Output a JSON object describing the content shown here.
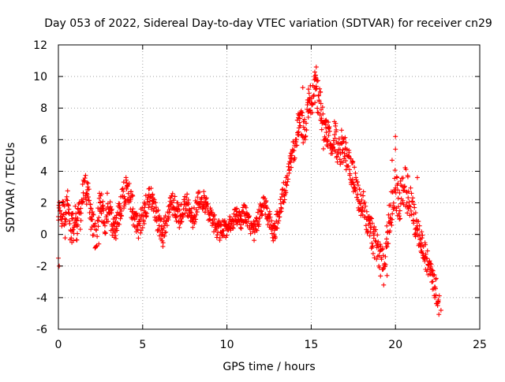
{
  "chart_data": {
    "type": "scatter",
    "title": "Day 053 of 2022, Sidereal Day-to-day VTEC variation (SDTVAR) for receiver cn29",
    "xlabel": "GPS time / hours",
    "ylabel": "SDTVAR / TECUs",
    "xlim": [
      0,
      25
    ],
    "ylim": [
      -6,
      12
    ],
    "xticks": [
      0,
      5,
      10,
      15,
      20,
      25
    ],
    "xtick_labels": [
      "0",
      "5",
      "10",
      "15",
      "20",
      "25"
    ],
    "yticks": [
      -6,
      -4,
      -2,
      0,
      2,
      4,
      6,
      8,
      10,
      12
    ],
    "ytick_labels": [
      "-6",
      "-4",
      "-2",
      "0",
      "2",
      "4",
      "6",
      "8",
      "10",
      "12"
    ],
    "grid": true,
    "marker": "+",
    "color": "#ff0000",
    "series": [
      {
        "name": "SDTVAR",
        "trace": [
          [
            0.0,
            1.5
          ],
          [
            0.1,
            2.0
          ],
          [
            0.2,
            1.2
          ],
          [
            0.3,
            1.8
          ],
          [
            0.4,
            0.5
          ],
          [
            0.5,
            2.8
          ],
          [
            0.6,
            1.5
          ],
          [
            0.7,
            -0.5
          ],
          [
            0.8,
            1.0
          ],
          [
            0.9,
            0.2
          ],
          [
            1.0,
            1.5
          ],
          [
            1.1,
            0.0
          ],
          [
            1.2,
            2.0
          ],
          [
            1.3,
            1.0
          ],
          [
            1.4,
            2.5
          ],
          [
            1.5,
            2.8
          ],
          [
            1.6,
            3.0
          ],
          [
            1.7,
            2.6
          ],
          [
            1.8,
            2.4
          ],
          [
            1.9,
            1.2
          ],
          [
            2.0,
            0.8
          ],
          [
            2.1,
            0.5
          ],
          [
            2.2,
            -0.3
          ],
          [
            2.3,
            0.0
          ],
          [
            2.4,
            1.8
          ],
          [
            2.5,
            2.0
          ],
          [
            2.6,
            1.5
          ],
          [
            2.7,
            1.0
          ],
          [
            2.8,
            0.6
          ],
          [
            2.9,
            1.8
          ],
          [
            3.0,
            1.5
          ],
          [
            3.2,
            0.8
          ],
          [
            3.4,
            0.2
          ],
          [
            3.6,
            1.5
          ],
          [
            3.8,
            2.2
          ],
          [
            4.0,
            2.8
          ],
          [
            4.2,
            2.5
          ],
          [
            4.4,
            1.6
          ],
          [
            4.6,
            1.0
          ],
          [
            4.8,
            0.5
          ],
          [
            5.0,
            1.2
          ],
          [
            5.2,
            1.8
          ],
          [
            5.4,
            2.6
          ],
          [
            5.6,
            2.2
          ],
          [
            5.8,
            1.2
          ],
          [
            6.0,
            0.5
          ],
          [
            6.2,
            0.0
          ],
          [
            6.4,
            0.8
          ],
          [
            6.6,
            1.6
          ],
          [
            6.8,
            2.0
          ],
          [
            7.0,
            1.5
          ],
          [
            7.2,
            1.0
          ],
          [
            7.4,
            1.6
          ],
          [
            7.6,
            2.0
          ],
          [
            7.8,
            1.2
          ],
          [
            8.0,
            1.0
          ],
          [
            8.2,
            1.8
          ],
          [
            8.4,
            2.3
          ],
          [
            8.6,
            2.2
          ],
          [
            8.8,
            1.8
          ],
          [
            9.0,
            1.2
          ],
          [
            9.2,
            0.8
          ],
          [
            9.4,
            0.4
          ],
          [
            9.6,
            0.2
          ],
          [
            9.8,
            0.5
          ],
          [
            10.0,
            0.3
          ],
          [
            10.2,
            0.6
          ],
          [
            10.4,
            1.0
          ],
          [
            10.6,
            1.2
          ],
          [
            10.8,
            0.8
          ],
          [
            11.0,
            1.4
          ],
          [
            11.2,
            1.0
          ],
          [
            11.4,
            0.6
          ],
          [
            11.6,
            0.2
          ],
          [
            11.8,
            0.8
          ],
          [
            12.0,
            1.5
          ],
          [
            12.2,
            2.2
          ],
          [
            12.4,
            1.2
          ],
          [
            12.6,
            0.8
          ],
          [
            12.8,
            0.0
          ],
          [
            13.0,
            1.0
          ],
          [
            13.2,
            2.0
          ],
          [
            13.4,
            2.8
          ],
          [
            13.6,
            3.5
          ],
          [
            13.8,
            4.5
          ],
          [
            14.0,
            5.5
          ],
          [
            14.2,
            6.8
          ],
          [
            14.4,
            7.0
          ],
          [
            14.6,
            6.5
          ],
          [
            14.8,
            8.2
          ],
          [
            15.0,
            8.5
          ],
          [
            15.2,
            9.5
          ],
          [
            15.4,
            8.8
          ],
          [
            15.6,
            7.5
          ],
          [
            15.8,
            6.0
          ],
          [
            16.0,
            6.8
          ],
          [
            16.2,
            6.0
          ],
          [
            16.4,
            6.4
          ],
          [
            16.6,
            5.0
          ],
          [
            16.8,
            5.5
          ],
          [
            17.0,
            5.2
          ],
          [
            17.2,
            4.5
          ],
          [
            17.4,
            4.0
          ],
          [
            17.6,
            3.2
          ],
          [
            17.8,
            2.5
          ],
          [
            18.0,
            2.0
          ],
          [
            18.2,
            1.5
          ],
          [
            18.4,
            0.5
          ],
          [
            18.6,
            0.0
          ],
          [
            18.8,
            -0.6
          ],
          [
            19.0,
            -1.2
          ],
          [
            19.2,
            -2.0
          ],
          [
            19.4,
            -1.0
          ],
          [
            19.6,
            0.5
          ],
          [
            19.8,
            2.0
          ],
          [
            20.0,
            3.0
          ],
          [
            20.2,
            2.0
          ],
          [
            20.4,
            2.5
          ],
          [
            20.6,
            3.0
          ],
          [
            20.8,
            2.2
          ],
          [
            21.0,
            1.5
          ],
          [
            21.2,
            0.5
          ],
          [
            21.4,
            0.0
          ],
          [
            21.6,
            -0.8
          ],
          [
            21.8,
            -1.5
          ],
          [
            22.0,
            -2.0
          ],
          [
            22.2,
            -2.8
          ],
          [
            22.4,
            -3.5
          ],
          [
            22.6,
            -4.5
          ]
        ],
        "spread": [
          [
            0,
            0.7
          ],
          [
            4,
            0.9
          ],
          [
            9,
            0.6
          ],
          [
            12,
            0.6
          ],
          [
            13.5,
            0.7
          ],
          [
            15.5,
            1.2
          ],
          [
            17.5,
            0.9
          ],
          [
            19,
            1.1
          ],
          [
            20.5,
            1.4
          ],
          [
            21.5,
            0.8
          ],
          [
            22.7,
            0.8
          ]
        ],
        "extra_points": [
          [
            0.0,
            -1.5
          ],
          [
            0.05,
            -2.0
          ],
          [
            0.8,
            -0.5
          ],
          [
            2.4,
            -0.6
          ],
          [
            19.3,
            -3.2
          ],
          [
            19.5,
            -2.6
          ],
          [
            20.0,
            6.2
          ],
          [
            20.0,
            5.4
          ],
          [
            19.8,
            4.7
          ],
          [
            21.3,
            3.6
          ],
          [
            15.3,
            10.6
          ],
          [
            15.2,
            10.0
          ],
          [
            14.5,
            9.3
          ],
          [
            16.8,
            6.6
          ],
          [
            22.7,
            -4.8
          ],
          [
            22.5,
            -4.5
          ]
        ]
      }
    ]
  }
}
